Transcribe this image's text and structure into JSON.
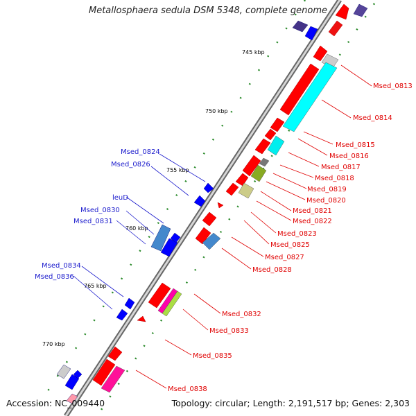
{
  "title": "Metallosphaera sedula DSM 5348, complete genome",
  "footer": {
    "accession": "Accession: NC_009440",
    "summary": "Topology: circular; Length: 2,191,517 bp; Genes: 2,303"
  },
  "colors": {
    "backbone": "#999999",
    "cds_forward": "#ff0000",
    "cds_reverse": "#0000ff",
    "label_forward": "#e00000",
    "label_reverse": "#1a1acc",
    "tick": "#2a8a2a"
  },
  "ticks": [
    {
      "label": "745 kbp"
    },
    {
      "label": "750 kbp"
    },
    {
      "label": "755 kbp"
    },
    {
      "label": "760 kbp"
    },
    {
      "label": "765 kbp"
    },
    {
      "label": "770 kbp"
    }
  ],
  "right_labels": [
    "Msed_0813",
    "Msed_0814",
    "Msed_0815",
    "Msed_0816",
    "Msed_0817",
    "Msed_0818",
    "Msed_0819",
    "Msed_0820",
    "Msed_0821",
    "Msed_0822",
    "Msed_0823",
    "Msed_0825",
    "Msed_0827",
    "Msed_0828",
    "Msed_0832",
    "Msed_0833",
    "Msed_0835",
    "Msed_0838"
  ],
  "left_labels": [
    "Msed_0824",
    "Msed_0826",
    "leuD",
    "Msed_0830",
    "Msed_0831",
    "Msed_0834",
    "Msed_0836"
  ]
}
